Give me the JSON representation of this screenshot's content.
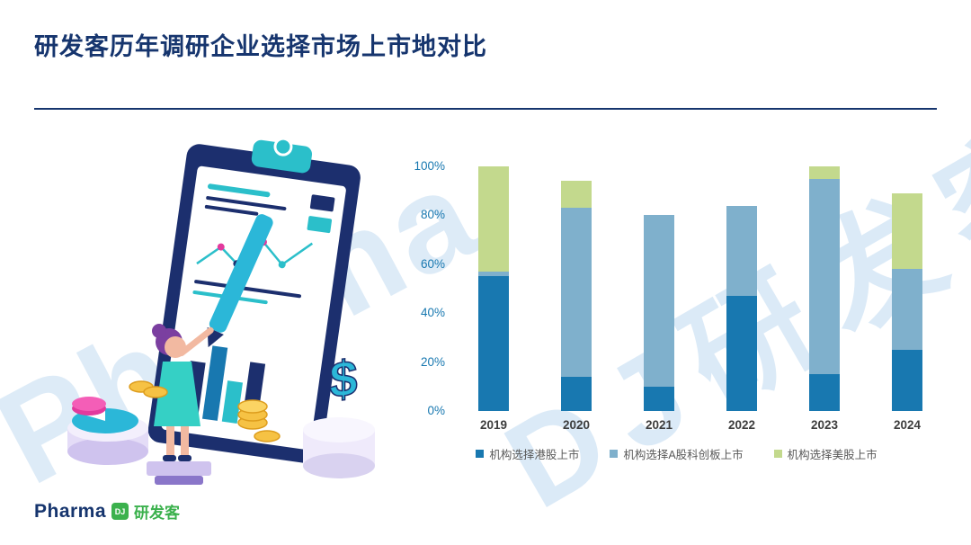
{
  "title": "研发客历年调研企业选择市场上市地对比",
  "watermark": {
    "part1": "Pharma",
    "part2": "DJ研发客"
  },
  "logo": {
    "brand": "Pharma",
    "mark": "DJ",
    "cn": "研发客"
  },
  "illustration": {
    "currency": "$"
  },
  "chart_data": {
    "type": "stacked-bar",
    "title": "",
    "categories": [
      "2019",
      "2020",
      "2021",
      "2022",
      "2023",
      "2024"
    ],
    "series": [
      {
        "name": "机构选择港股上市",
        "color": "#1878b0",
        "values": [
          55,
          14,
          10,
          47,
          15,
          25
        ]
      },
      {
        "name": "机构选择A股科创板上市",
        "color": "#7fb0cc",
        "values": [
          2,
          69,
          70,
          37,
          80,
          33
        ]
      },
      {
        "name": "机构选择美股上市",
        "color": "#c3d98d",
        "values": [
          43,
          11,
          0,
          0,
          5,
          31
        ]
      }
    ],
    "ylim": [
      0,
      100
    ],
    "yticks": [
      0,
      20,
      40,
      60,
      80,
      100
    ],
    "ytick_labels": [
      "0%",
      "20%",
      "40%",
      "60%",
      "80%",
      "100%"
    ],
    "legend_position": "bottom",
    "grid": false
  }
}
